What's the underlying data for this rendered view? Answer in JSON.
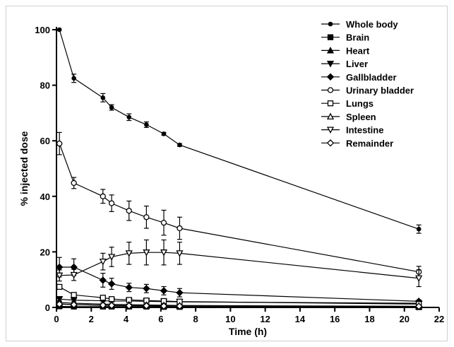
{
  "chart_data": {
    "type": "line",
    "xlabel": "Time (h)",
    "ylabel": "% injected dose",
    "xlim": [
      0,
      22
    ],
    "ylim": [
      0,
      100
    ],
    "x_ticks": [
      "0",
      "2",
      "4",
      "6",
      "8",
      "10",
      "12",
      "14",
      "16",
      "18",
      "20",
      "22"
    ],
    "y_ticks": [
      "0",
      "20",
      "40",
      "60",
      "80",
      "100"
    ],
    "grid": false,
    "legend_position": "top-right",
    "x": [
      0.17,
      1,
      2.67,
      3.17,
      4.17,
      5.17,
      6.17,
      7.08,
      20.83
    ],
    "series": [
      {
        "name": "Whole body",
        "marker": "dot",
        "values": [
          100,
          82.5,
          75.5,
          72,
          68.5,
          65.8,
          62.5,
          58.5,
          28.2
        ],
        "errors": [
          0,
          1.5,
          1.5,
          1,
          1.2,
          1,
          0.5,
          0.5,
          1.5
        ]
      },
      {
        "name": "Brain",
        "marker": "square-filled",
        "values": [
          0.4,
          0.3,
          0.3,
          0.3,
          0.3,
          0.3,
          0.2,
          0.2,
          0.1
        ],
        "errors": [
          0.1,
          0.1,
          0.1,
          0.1,
          0.1,
          0.1,
          0.1,
          0.1,
          0.1
        ]
      },
      {
        "name": "Heart",
        "marker": "triangle-up-filled",
        "values": [
          1.3,
          1.0,
          0.8,
          0.7,
          0.7,
          0.6,
          0.6,
          0.5,
          0.3
        ],
        "errors": [
          0.3,
          0.2,
          0.1,
          0.1,
          0.1,
          0.1,
          0.1,
          0.1,
          0.1
        ]
      },
      {
        "name": "Liver",
        "marker": "triangle-down-filled",
        "values": [
          3.0,
          2.6,
          2.4,
          2.3,
          2.3,
          2.2,
          2.1,
          2.0,
          1.5
        ],
        "errors": [
          0.6,
          0.5,
          0.4,
          0.4,
          0.4,
          0.3,
          0.3,
          0.3,
          0.3
        ]
      },
      {
        "name": "Gallbladder",
        "marker": "diamond-filled",
        "values": [
          14.5,
          14.5,
          9.8,
          8.5,
          7.2,
          6.8,
          6.0,
          5.3,
          2.2
        ],
        "errors": [
          3.5,
          3,
          2.5,
          2,
          1.5,
          1.5,
          1.5,
          1.5,
          0.5
        ]
      },
      {
        "name": "Urinary bladder",
        "marker": "circle-open",
        "values": [
          59,
          44.8,
          40,
          37.5,
          34.8,
          32.5,
          30.5,
          28.5,
          12.8
        ],
        "errors": [
          4,
          2,
          2.5,
          3,
          3.5,
          4,
          4.5,
          4,
          2
        ]
      },
      {
        "name": "Lungs",
        "marker": "square-open",
        "values": [
          7.4,
          4.5,
          3.5,
          3.0,
          2.7,
          2.5,
          2.3,
          2.1,
          1.2
        ],
        "errors": [
          0.5,
          0.4,
          0.3,
          0.3,
          0.3,
          0.3,
          0.3,
          0.3,
          0.2
        ]
      },
      {
        "name": "Spleen",
        "marker": "triangle-up-open",
        "values": [
          1.8,
          1.5,
          1.2,
          1.1,
          1.0,
          0.9,
          0.8,
          0.7,
          0.4
        ],
        "errors": [
          0.3,
          0.2,
          0.2,
          0.2,
          0.2,
          0.2,
          0.2,
          0.2,
          0.1
        ]
      },
      {
        "name": "Intestine",
        "marker": "triangle-down-open",
        "values": [
          11.5,
          11.7,
          16.5,
          18.2,
          19.5,
          19.8,
          19.8,
          19.5,
          10.5
        ],
        "errors": [
          2,
          2,
          3,
          3.5,
          4,
          4.5,
          4.5,
          4,
          3
        ]
      },
      {
        "name": "Remainder",
        "marker": "diamond-open",
        "values": [
          1.2,
          1.0,
          0.8,
          0.7,
          0.6,
          0.6,
          0.5,
          0.5,
          0.4
        ],
        "errors": [
          0.2,
          0.2,
          0.2,
          0.2,
          0.2,
          0.1,
          0.1,
          0.1,
          0.1
        ]
      }
    ]
  }
}
